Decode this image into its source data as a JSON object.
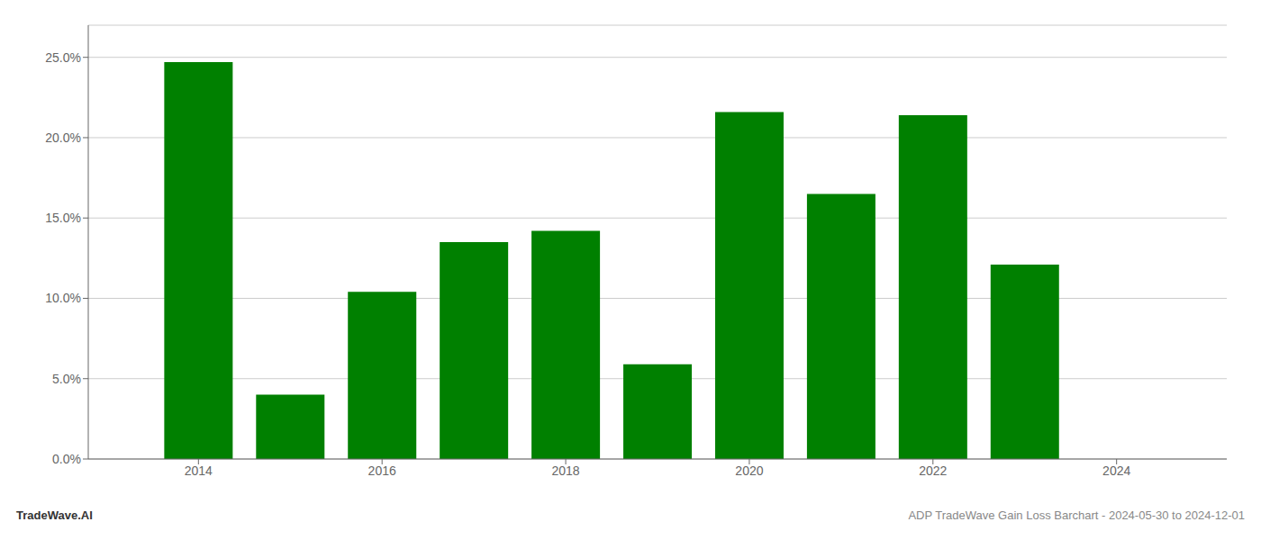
{
  "chart_data": {
    "type": "bar",
    "x": [
      2014,
      2015,
      2016,
      2017,
      2018,
      2019,
      2020,
      2021,
      2022,
      2023
    ],
    "values": [
      0.247,
      0.04,
      0.104,
      0.135,
      0.142,
      0.059,
      0.216,
      0.165,
      0.214,
      0.121
    ],
    "color": "#008000",
    "xlim": [
      2012.8,
      2025.2
    ],
    "xticks": [
      2014,
      2016,
      2018,
      2020,
      2022,
      2024
    ],
    "ylim": [
      0,
      0.27
    ],
    "yticks": [
      {
        "value": 0.0,
        "label": "0.0%"
      },
      {
        "value": 0.05,
        "label": "5.0%"
      },
      {
        "value": 0.1,
        "label": "10.0%"
      },
      {
        "value": 0.15,
        "label": "15.0%"
      },
      {
        "value": 0.2,
        "label": "20.0%"
      },
      {
        "value": 0.25,
        "label": "25.0%"
      }
    ],
    "grid": true,
    "annotations": [
      "TradeWave.AI",
      "ADP TradeWave Gain Loss Barchart - 2024-05-30 to 2024-12-01"
    ]
  }
}
